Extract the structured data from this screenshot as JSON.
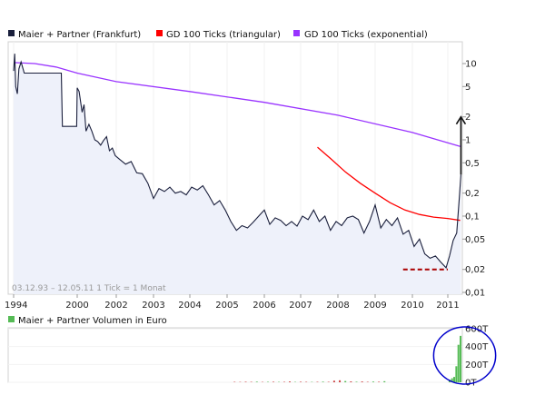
{
  "chart_data": [
    {
      "type": "line",
      "scale": "log",
      "legend": [
        {
          "name": "Maier + Partner (Frankfurt)",
          "color": "#1a1f3c"
        },
        {
          "name": "GD 100 Ticks (triangular)",
          "color": "#ff0000"
        },
        {
          "name": "GD 100 Ticks (exponential)",
          "color": "#9933ff"
        }
      ],
      "date_range_note": "03.12.93 – 12.05.11   1 Tick = 1 Monat",
      "x_ticks": [
        "1994",
        "2000",
        "2002",
        "2003",
        "2004",
        "2005",
        "2006",
        "2007",
        "2008",
        "2009",
        "2010",
        "2011"
      ],
      "y_ticks": [
        "10",
        "5",
        "2",
        "1",
        "0,5",
        "0,2",
        "0,1",
        "0,05",
        "0,02",
        "0,01"
      ],
      "y_tick_values": [
        10,
        5,
        2,
        1,
        0.5,
        0.2,
        0.1,
        0.05,
        0.02,
        0.01
      ],
      "ylim": [
        0.01,
        20
      ],
      "series": [
        {
          "name": "Maier + Partner (Frankfurt)",
          "color": "#1a1f3c",
          "points": [
            [
              1994.0,
              8.0
            ],
            [
              1994.1,
              13.5
            ],
            [
              1994.2,
              5.0
            ],
            [
              1994.35,
              4.0
            ],
            [
              1994.5,
              8.5
            ],
            [
              1994.7,
              10.5
            ],
            [
              1995.0,
              7.5
            ],
            [
              1996.0,
              7.5
            ],
            [
              1997.0,
              7.5
            ],
            [
              1998.0,
              7.5
            ],
            [
              1998.5,
              7.5
            ],
            [
              1998.6,
              1.5
            ],
            [
              1999.0,
              1.5
            ],
            [
              1999.5,
              1.5
            ],
            [
              1999.95,
              1.5
            ],
            [
              2000.0,
              4.8
            ],
            [
              2000.1,
              4.3
            ],
            [
              2000.25,
              2.3
            ],
            [
              2000.35,
              2.9
            ],
            [
              2000.45,
              1.3
            ],
            [
              2000.6,
              1.6
            ],
            [
              2000.75,
              1.3
            ],
            [
              2000.9,
              1.0
            ],
            [
              2001.05,
              0.95
            ],
            [
              2001.2,
              0.85
            ],
            [
              2001.35,
              0.98
            ],
            [
              2001.5,
              1.1
            ],
            [
              2001.65,
              0.72
            ],
            [
              2001.8,
              0.78
            ],
            [
              2001.95,
              0.62
            ],
            [
              2002.1,
              0.55
            ],
            [
              2002.25,
              0.48
            ],
            [
              2002.4,
              0.52
            ],
            [
              2002.55,
              0.37
            ],
            [
              2002.7,
              0.36
            ],
            [
              2002.85,
              0.27
            ],
            [
              2003.0,
              0.17
            ],
            [
              2003.15,
              0.23
            ],
            [
              2003.3,
              0.21
            ],
            [
              2003.45,
              0.24
            ],
            [
              2003.6,
              0.2
            ],
            [
              2003.75,
              0.21
            ],
            [
              2003.9,
              0.19
            ],
            [
              2004.05,
              0.24
            ],
            [
              2004.2,
              0.22
            ],
            [
              2004.35,
              0.25
            ],
            [
              2004.5,
              0.19
            ],
            [
              2004.65,
              0.14
            ],
            [
              2004.8,
              0.16
            ],
            [
              2004.95,
              0.12
            ],
            [
              2005.1,
              0.085
            ],
            [
              2005.25,
              0.065
            ],
            [
              2005.4,
              0.075
            ],
            [
              2005.55,
              0.07
            ],
            [
              2005.7,
              0.083
            ],
            [
              2005.85,
              0.1
            ],
            [
              2006.0,
              0.12
            ],
            [
              2006.15,
              0.078
            ],
            [
              2006.3,
              0.095
            ],
            [
              2006.45,
              0.088
            ],
            [
              2006.6,
              0.075
            ],
            [
              2006.75,
              0.085
            ],
            [
              2006.9,
              0.074
            ],
            [
              2007.05,
              0.1
            ],
            [
              2007.2,
              0.09
            ],
            [
              2007.35,
              0.12
            ],
            [
              2007.5,
              0.085
            ],
            [
              2007.65,
              0.1
            ],
            [
              2007.8,
              0.065
            ],
            [
              2007.95,
              0.085
            ],
            [
              2008.1,
              0.075
            ],
            [
              2008.25,
              0.095
            ],
            [
              2008.4,
              0.1
            ],
            [
              2008.55,
              0.09
            ],
            [
              2008.7,
              0.06
            ],
            [
              2008.85,
              0.085
            ],
            [
              2009.0,
              0.14
            ],
            [
              2009.15,
              0.07
            ],
            [
              2009.3,
              0.09
            ],
            [
              2009.45,
              0.075
            ],
            [
              2009.6,
              0.095
            ],
            [
              2009.75,
              0.058
            ],
            [
              2009.9,
              0.065
            ],
            [
              2010.05,
              0.04
            ],
            [
              2010.2,
              0.05
            ],
            [
              2010.35,
              0.032
            ],
            [
              2010.5,
              0.028
            ],
            [
              2010.65,
              0.03
            ],
            [
              2010.8,
              0.025
            ],
            [
              2010.95,
              0.021
            ],
            [
              2011.05,
              0.03
            ],
            [
              2011.15,
              0.048
            ],
            [
              2011.25,
              0.06
            ],
            [
              2011.33,
              0.19
            ],
            [
              2011.37,
              0.35
            ]
          ]
        },
        {
          "name": "GD 100 Ticks (triangular)",
          "color": "#ff0000",
          "points": [
            [
              2007.45,
              0.8
            ],
            [
              2007.8,
              0.57
            ],
            [
              2008.2,
              0.38
            ],
            [
              2008.6,
              0.27
            ],
            [
              2009.0,
              0.2
            ],
            [
              2009.4,
              0.15
            ],
            [
              2009.8,
              0.12
            ],
            [
              2010.2,
              0.105
            ],
            [
              2010.6,
              0.097
            ],
            [
              2011.0,
              0.093
            ],
            [
              2011.35,
              0.088
            ]
          ]
        },
        {
          "name": "GD 100 Ticks (exponential)",
          "color": "#9933ff",
          "points": [
            [
              1994.0,
              10.3
            ],
            [
              1996.0,
              10.0
            ],
            [
              1998.0,
              9.0
            ],
            [
              2000.0,
              7.5
            ],
            [
              2002.0,
              5.8
            ],
            [
              2004.0,
              4.3
            ],
            [
              2006.0,
              3.1
            ],
            [
              2008.0,
              2.1
            ],
            [
              2010.0,
              1.25
            ],
            [
              2011.35,
              0.82
            ]
          ]
        }
      ],
      "annotations": [
        {
          "type": "dashed-line",
          "color": "#aa0000",
          "x_from": 2009.75,
          "x_to": 2011.0,
          "y": 0.02
        },
        {
          "type": "arrow",
          "color": "#111111",
          "x": 2011.37,
          "y_from": 0.35,
          "y_to": 2.0
        }
      ]
    },
    {
      "type": "bar",
      "legend": [
        {
          "name": "Maier + Partner Volumen in Euro",
          "color": "#55bb55"
        }
      ],
      "y_ticks": [
        "600T",
        "400T",
        "200T",
        "0T"
      ],
      "y_tick_values": [
        600,
        400,
        200,
        0
      ],
      "ylim": [
        0,
        600
      ],
      "bars": [
        [
          2005.2,
          5,
          "#cc4444"
        ],
        [
          2005.35,
          4,
          "#cc4444"
        ],
        [
          2005.5,
          6,
          "#cc4444"
        ],
        [
          2005.65,
          5,
          "#cc4444"
        ],
        [
          2005.8,
          7,
          "#55bb55"
        ],
        [
          2005.95,
          4,
          "#cc4444"
        ],
        [
          2006.1,
          5,
          "#55bb55"
        ],
        [
          2006.25,
          6,
          "#cc4444"
        ],
        [
          2006.4,
          4,
          "#55bb55"
        ],
        [
          2006.55,
          5,
          "#cc4444"
        ],
        [
          2006.7,
          9,
          "#cc4444"
        ],
        [
          2006.85,
          4,
          "#55bb55"
        ],
        [
          2007.0,
          6,
          "#cc4444"
        ],
        [
          2007.15,
          5,
          "#cc4444"
        ],
        [
          2007.3,
          4,
          "#55bb55"
        ],
        [
          2007.45,
          5,
          "#cc4444"
        ],
        [
          2007.6,
          7,
          "#55bb55"
        ],
        [
          2007.75,
          5,
          "#cc4444"
        ],
        [
          2007.9,
          18,
          "#cc4444"
        ],
        [
          2008.05,
          22,
          "#cc4444"
        ],
        [
          2008.2,
          14,
          "#55bb55"
        ],
        [
          2008.35,
          10,
          "#cc4444"
        ],
        [
          2008.5,
          6,
          "#55bb55"
        ],
        [
          2008.65,
          9,
          "#cc4444"
        ],
        [
          2008.8,
          5,
          "#cc4444"
        ],
        [
          2008.95,
          8,
          "#55bb55"
        ],
        [
          2009.1,
          6,
          "#cc4444"
        ],
        [
          2009.25,
          12,
          "#55bb55"
        ],
        [
          2011.05,
          30,
          "#55bb55"
        ],
        [
          2011.12,
          45,
          "#55bb55"
        ],
        [
          2011.18,
          60,
          "#55bb55"
        ],
        [
          2011.24,
          180,
          "#55bb55"
        ],
        [
          2011.3,
          420,
          "#55bb55"
        ],
        [
          2011.36,
          520,
          "#55bb55"
        ]
      ],
      "annotations": [
        {
          "type": "ellipse",
          "color": "#0000cc",
          "x_from": 2010.6,
          "x_to": 2012.35,
          "y_top": 620,
          "y_bottom": -20
        }
      ]
    }
  ]
}
